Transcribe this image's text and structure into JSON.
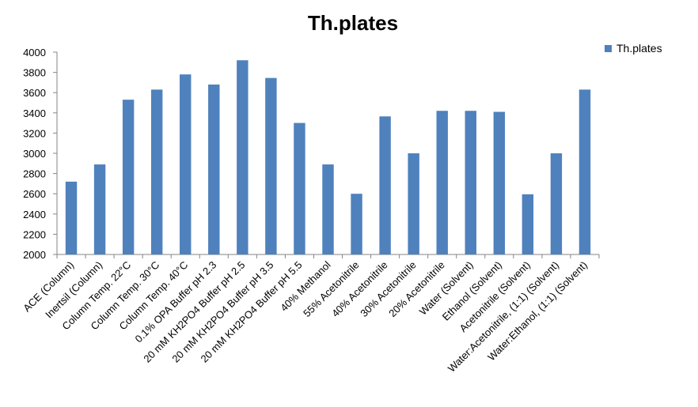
{
  "chart_data": {
    "type": "bar",
    "title": "Th.plates",
    "xlabel": "",
    "ylabel": "",
    "ylim": [
      2000,
      4000
    ],
    "yticks": [
      2000,
      2200,
      2400,
      2600,
      2800,
      3000,
      3200,
      3400,
      3600,
      3800,
      4000
    ],
    "grid": false,
    "legend_position": "top-right",
    "bar_color": "#4F81BD",
    "categories": [
      "ACE (Column)",
      "Inertsil (Column)",
      "Column Temp. 22°C",
      "Column Temp. 30°C",
      "Column Temp. 40°C",
      "0.1% OPA Buffer pH 2.3",
      "20 mM KH2PO4 Buffer pH 2.5",
      "20 mM KH2PO4 Buffer pH 3.5",
      "20 mM KH2PO4 Buffer pH 5.5",
      "40% Methanol",
      "55% Acetonitrile",
      "40% Acetonitrile",
      "30% Acetonitrile",
      "20% Acetonitrile",
      "Water (Solvent)",
      "Ethanol (Solvent)",
      "Acetonitrile (Solvent)",
      "Water:Acetonitrile, (1:1) (Solvent)",
      "Water:Ethanol, (1:1) (Solvent)"
    ],
    "series": [
      {
        "name": "Th.plates",
        "values": [
          2720,
          2890,
          3530,
          3630,
          3780,
          3680,
          3920,
          3745,
          3300,
          2890,
          2600,
          3365,
          3000,
          3420,
          3420,
          3410,
          2595,
          3000,
          3630
        ]
      }
    ]
  }
}
